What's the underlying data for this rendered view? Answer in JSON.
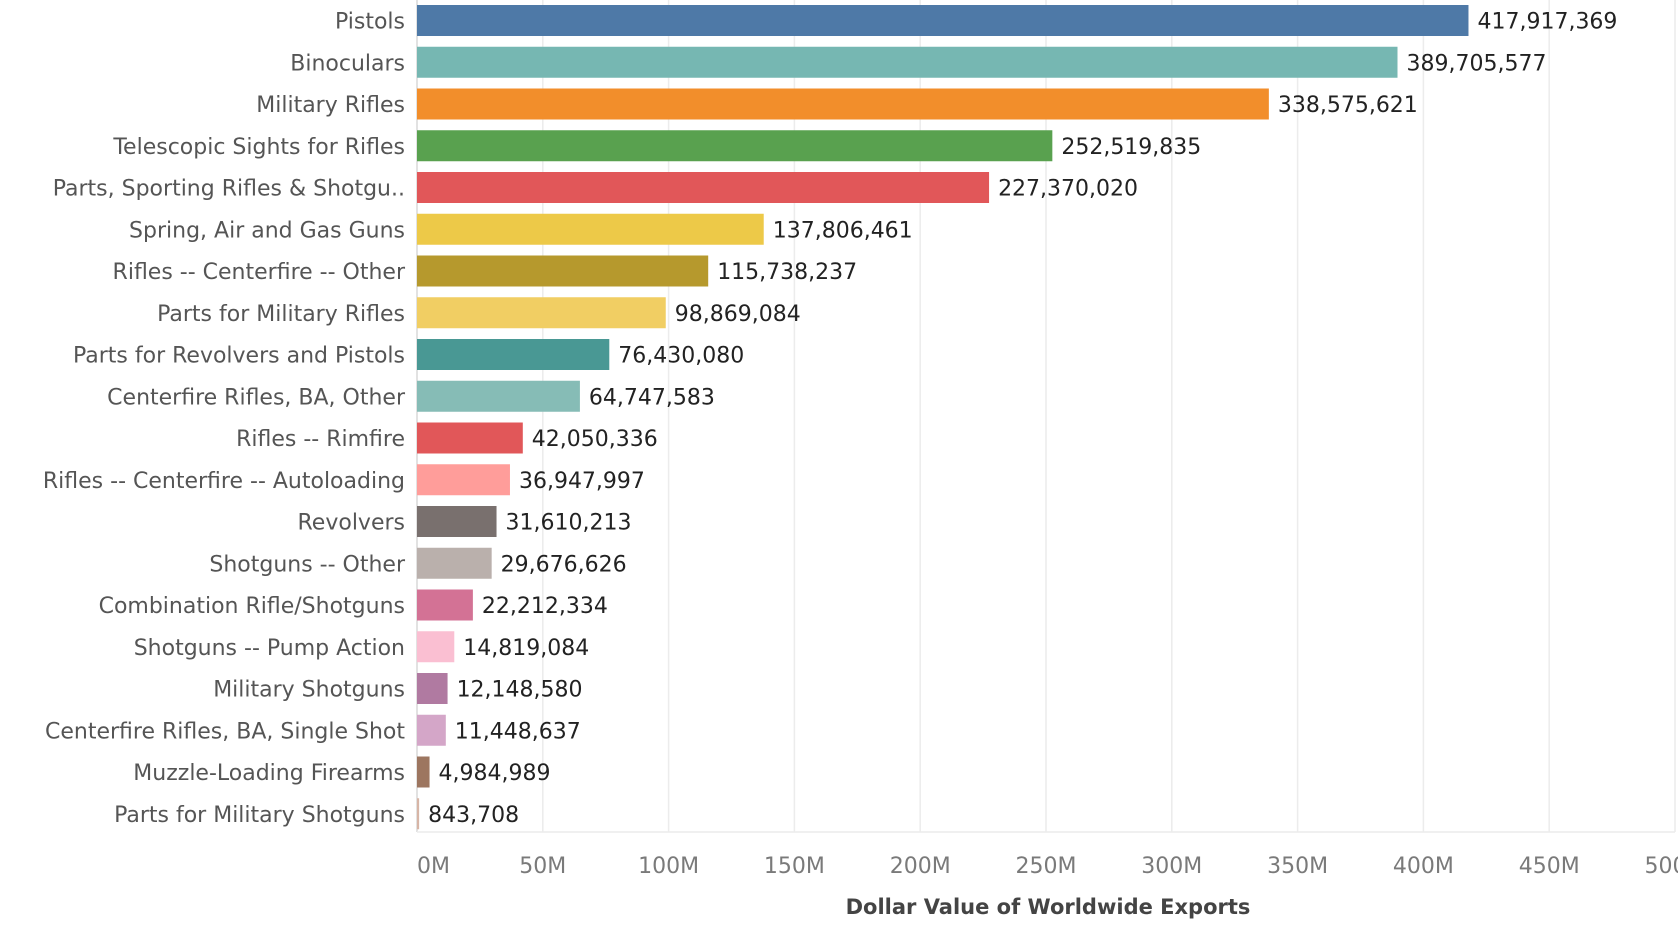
{
  "chart_data": {
    "type": "bar",
    "orientation": "horizontal",
    "xlabel": "Dollar Value of Worldwide Exports",
    "ylabel": "",
    "xlim": [
      0,
      500000000
    ],
    "grid": true,
    "x_ticks": [
      {
        "value": 0,
        "label": "0M"
      },
      {
        "value": 50000000,
        "label": "50M"
      },
      {
        "value": 100000000,
        "label": "100M"
      },
      {
        "value": 150000000,
        "label": "150M"
      },
      {
        "value": 200000000,
        "label": "200M"
      },
      {
        "value": 250000000,
        "label": "250M"
      },
      {
        "value": 300000000,
        "label": "300M"
      },
      {
        "value": 350000000,
        "label": "350M"
      },
      {
        "value": 400000000,
        "label": "400M"
      },
      {
        "value": 450000000,
        "label": "450M"
      },
      {
        "value": 500000000,
        "label": "500M"
      }
    ],
    "bars": [
      {
        "category": "Pistols",
        "value": 417917369,
        "label": "417,917,369",
        "color": "#4e79a7"
      },
      {
        "category": "Binoculars",
        "value": 389705577,
        "label": "389,705,577",
        "color": "#76b7b2"
      },
      {
        "category": "Military Rifles",
        "value": 338575621,
        "label": "338,575,621",
        "color": "#f28e2b"
      },
      {
        "category": "Telescopic Sights for Rifles",
        "value": 252519835,
        "label": "252,519,835",
        "color": "#59a14f"
      },
      {
        "category": "Parts, Sporting Rifles & Shotgu..",
        "value": 227370020,
        "label": "227,370,020",
        "color": "#e15759"
      },
      {
        "category": "Spring, Air and Gas Guns",
        "value": 137806461,
        "label": "137,806,461",
        "color": "#edc948"
      },
      {
        "category": "Rifles -- Centerfire -- Other",
        "value": 115738237,
        "label": "115,738,237",
        "color": "#b6992d"
      },
      {
        "category": "Parts for Military Rifles",
        "value": 98869084,
        "label": "98,869,084",
        "color": "#f1ce63"
      },
      {
        "category": "Parts for Revolvers and Pistols",
        "value": 76430080,
        "label": "76,430,080",
        "color": "#499894"
      },
      {
        "category": "Centerfire Rifles, BA, Other",
        "value": 64747583,
        "label": "64,747,583",
        "color": "#86bcb6"
      },
      {
        "category": "Rifles -- Rimfire",
        "value": 42050336,
        "label": "42,050,336",
        "color": "#e15759"
      },
      {
        "category": "Rifles -- Centerfire -- Autoloading",
        "value": 36947997,
        "label": "36,947,997",
        "color": "#ff9d9a"
      },
      {
        "category": "Revolvers",
        "value": 31610213,
        "label": "31,610,213",
        "color": "#79706e"
      },
      {
        "category": "Shotguns -- Other",
        "value": 29676626,
        "label": "29,676,626",
        "color": "#bab0ac"
      },
      {
        "category": "Combination Rifle/Shotguns",
        "value": 22212334,
        "label": "22,212,334",
        "color": "#d37295"
      },
      {
        "category": "Shotguns -- Pump Action",
        "value": 14819084,
        "label": "14,819,084",
        "color": "#fabfd2"
      },
      {
        "category": "Military Shotguns",
        "value": 12148580,
        "label": "12,148,580",
        "color": "#b07aa1"
      },
      {
        "category": "Centerfire Rifles, BA, Single Shot",
        "value": 11448637,
        "label": "11,448,637",
        "color": "#d4a6c8"
      },
      {
        "category": "Muzzle-Loading Firearms",
        "value": 4984989,
        "label": "4,984,989",
        "color": "#9d7660"
      },
      {
        "category": "Parts for Military Shotguns",
        "value": 843708,
        "label": "843,708",
        "color": "#d7b5a6"
      }
    ]
  }
}
